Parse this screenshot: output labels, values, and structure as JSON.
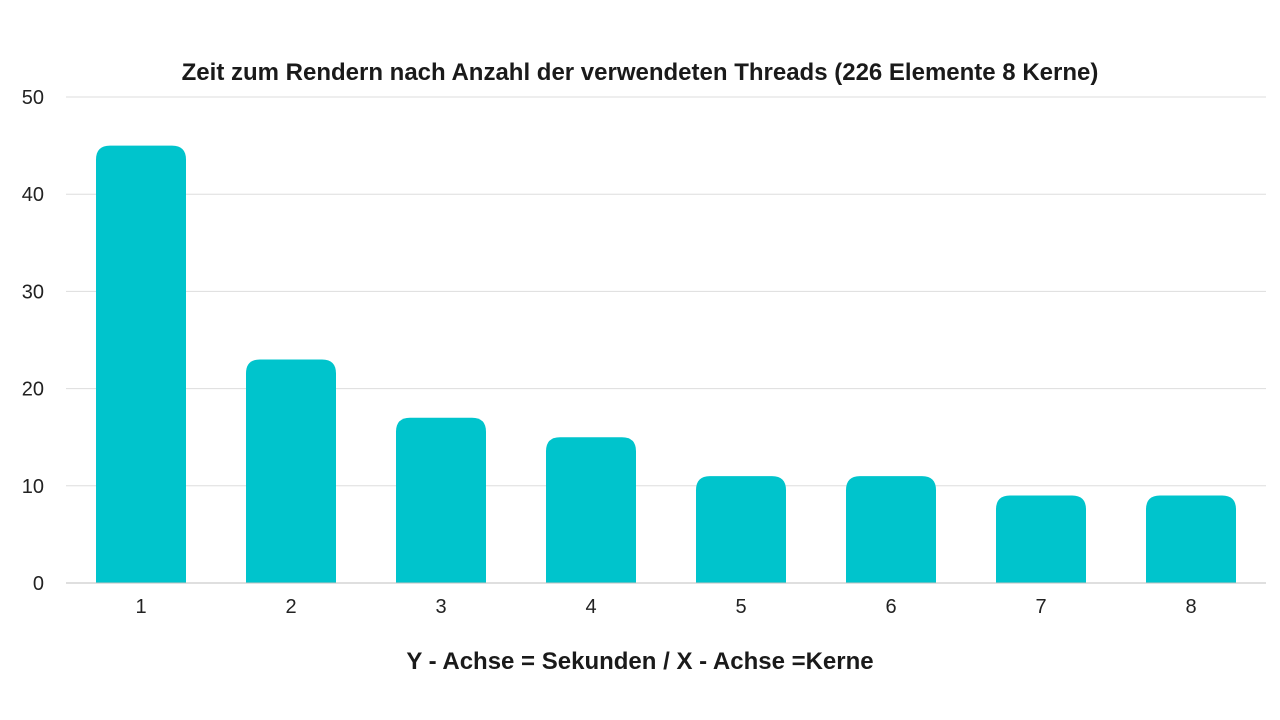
{
  "chart_data": {
    "type": "bar",
    "title": "Zeit zum Rendern nach Anzahl der verwendeten Threads (226 Elemente 8 Kerne)",
    "xlabel": "Y - Achse = Sekunden / X - Achse =Kerne",
    "ylabel": "",
    "categories": [
      "1",
      "2",
      "3",
      "4",
      "5",
      "6",
      "7",
      "8"
    ],
    "values": [
      45,
      23,
      17,
      15,
      11,
      11,
      9,
      9
    ],
    "ylim": [
      0,
      50
    ],
    "yticks": [
      0,
      10,
      20,
      30,
      40,
      50
    ],
    "grid": true,
    "legend": "none",
    "colors": {
      "bar": "#00C4CC",
      "grid": "#dddddd",
      "axis": "#bfbfbf"
    }
  }
}
